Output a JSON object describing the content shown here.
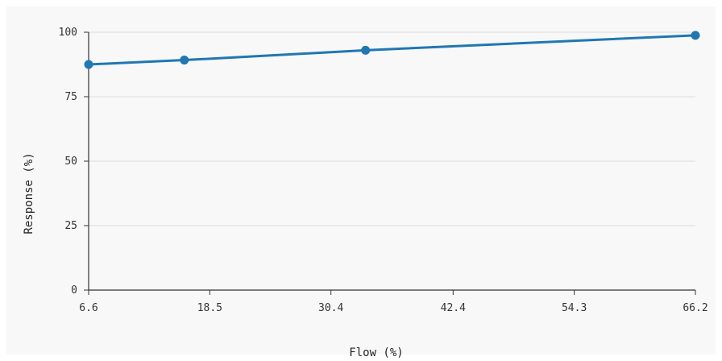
{
  "chart_data": {
    "type": "line",
    "title": "",
    "xlabel": "Flow (%)",
    "ylabel": "Response (%)",
    "x_ticks": [
      "6.6",
      "18.5",
      "30.4",
      "42.4",
      "54.3",
      "66.2"
    ],
    "y_ticks": [
      "0",
      "25",
      "50",
      "75",
      "100"
    ],
    "xlim": [
      6.6,
      66.2
    ],
    "ylim": [
      0,
      100
    ],
    "grid": "horizontal",
    "legend": "none",
    "series": [
      {
        "color": "#1f77b4",
        "x": [
          6.6,
          16.0,
          33.8,
          66.2
        ],
        "y": [
          87.5,
          89.2,
          93.0,
          98.8
        ]
      }
    ]
  }
}
